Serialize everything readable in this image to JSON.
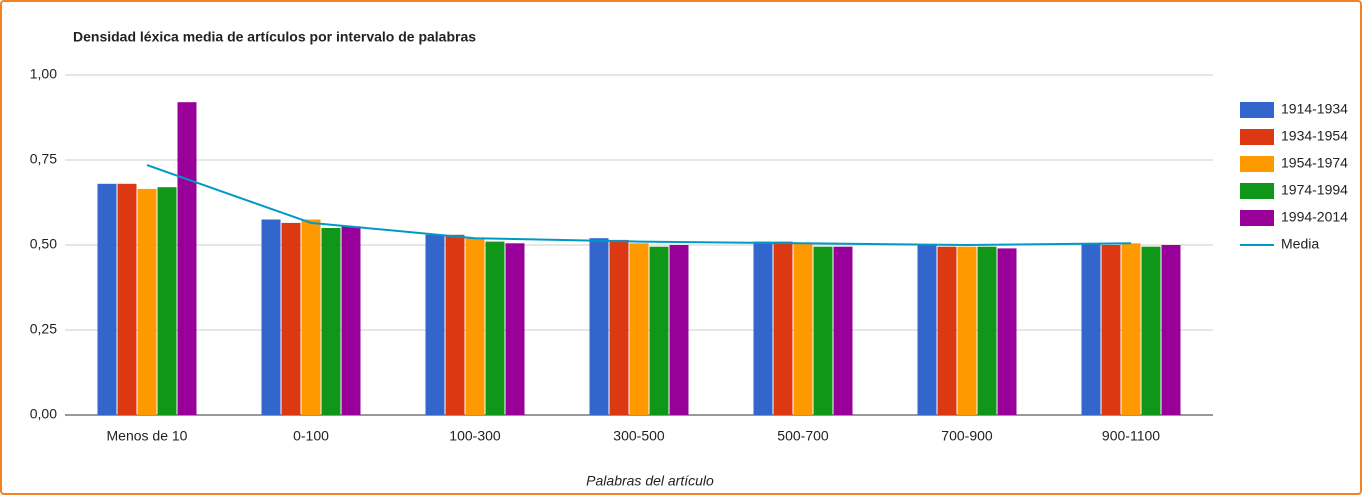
{
  "chart_data": {
    "type": "bar",
    "title": "Densidad léxica media de artículos por intervalo de palabras",
    "x_label": "Palabras del artículo",
    "categories": [
      "Menos de 10",
      "0-100",
      "100-300",
      "300-500",
      "500-700",
      "700-900",
      "900-1100"
    ],
    "series": [
      {
        "name": "1914-1934",
        "color": "#3366cc",
        "values": [
          0.68,
          0.575,
          0.53,
          0.52,
          0.51,
          0.5,
          0.505
        ]
      },
      {
        "name": "1934-1954",
        "color": "#dc3912",
        "values": [
          0.68,
          0.565,
          0.53,
          0.515,
          0.51,
          0.495,
          0.5
        ]
      },
      {
        "name": "1954-1974",
        "color": "#ff9900",
        "values": [
          0.665,
          0.575,
          0.52,
          0.505,
          0.505,
          0.495,
          0.505
        ]
      },
      {
        "name": "1974-1994",
        "color": "#109618",
        "values": [
          0.67,
          0.55,
          0.51,
          0.495,
          0.495,
          0.495,
          0.495
        ]
      },
      {
        "name": "1994-2014",
        "color": "#990099",
        "values": [
          0.92,
          0.555,
          0.505,
          0.5,
          0.495,
          0.49,
          0.5
        ]
      },
      {
        "name": "Media",
        "type": "line",
        "color": "#0099c6",
        "values": [
          0.735,
          0.565,
          0.52,
          0.51,
          0.505,
          0.5,
          0.505
        ]
      }
    ],
    "ylim": [
      0,
      1
    ],
    "yticks": [
      {
        "value": 0,
        "label": "0,00"
      },
      {
        "value": 0.25,
        "label": "0,25"
      },
      {
        "value": 0.5,
        "label": "0,50"
      },
      {
        "value": 0.75,
        "label": "0,75"
      },
      {
        "value": 1,
        "label": "1,00"
      }
    ],
    "grid": true,
    "legend": "right"
  }
}
